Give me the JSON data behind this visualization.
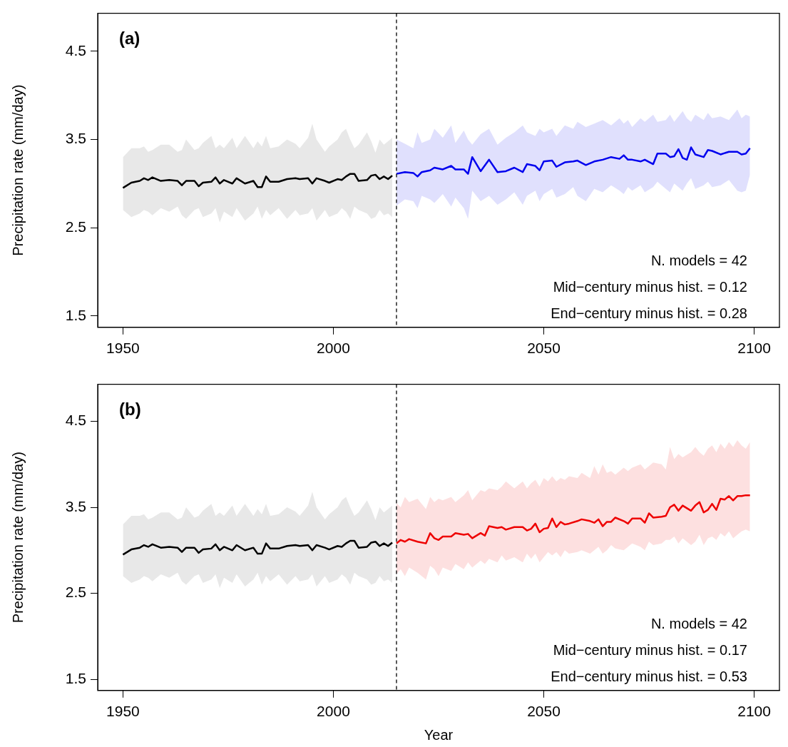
{
  "chart_data": [
    {
      "type": "line",
      "ylabel": "Precipitation rate (mm/day)",
      "xlim": [
        1944,
        2106
      ],
      "xticks": [
        1950,
        2000,
        2050,
        2100
      ],
      "ylim": [
        1.37,
        4.93
      ],
      "yticks": [
        1.5,
        2.5,
        3.5,
        4.5
      ],
      "grid": false,
      "legend": false,
      "marker": "none",
      "annotations": [
        "(a)",
        "N. models = 42",
        "Mid−century minus hist. = 0.12",
        "End−century minus hist. = 0.28"
      ],
      "ref_lines": [
        {
          "axis": "x",
          "value": 2015,
          "color": "#000000",
          "line_style": "dashed"
        }
      ],
      "series": [
        {
          "color": "#000000",
          "x": [
            1950,
            1952,
            1954,
            1955,
            1956,
            1957,
            1959,
            1961,
            1963,
            1964,
            1965,
            1967,
            1968,
            1969,
            1971,
            1972,
            1973,
            1974,
            1976,
            1977,
            1979,
            1981,
            1982,
            1983,
            1984,
            1985,
            1987,
            1989,
            1991,
            1992,
            1994,
            1995,
            1996,
            1998,
            1999,
            2001,
            2002,
            2003,
            2004,
            2005,
            2006,
            2008,
            2009,
            2010,
            2011,
            2012,
            2013,
            2014
          ],
          "values": [
            2.95,
            3.01,
            3.03,
            3.06,
            3.04,
            3.07,
            3.03,
            3.04,
            3.03,
            2.98,
            3.03,
            3.03,
            2.97,
            3.01,
            3.02,
            3.07,
            3.0,
            3.04,
            3.0,
            3.06,
            3.0,
            3.03,
            2.96,
            2.96,
            3.08,
            3.02,
            3.02,
            3.05,
            3.06,
            3.05,
            3.06,
            3.0,
            3.06,
            3.03,
            3.01,
            3.05,
            3.04,
            3.08,
            3.11,
            3.11,
            3.03,
            3.04,
            3.09,
            3.1,
            3.05,
            3.08,
            3.05,
            3.09
          ],
          "upper": [
            3.3,
            3.4,
            3.4,
            3.42,
            3.36,
            3.38,
            3.44,
            3.44,
            3.36,
            3.38,
            3.5,
            3.38,
            3.4,
            3.46,
            3.54,
            3.4,
            3.44,
            3.4,
            3.52,
            3.4,
            3.54,
            3.4,
            3.48,
            3.42,
            3.54,
            3.4,
            3.42,
            3.5,
            3.45,
            3.4,
            3.52,
            3.68,
            3.5,
            3.36,
            3.42,
            3.5,
            3.58,
            3.62,
            3.5,
            3.4,
            3.44,
            3.58,
            3.48,
            3.35,
            3.5,
            3.44,
            3.48,
            3.52
          ],
          "lower": [
            2.7,
            2.62,
            2.66,
            2.7,
            2.68,
            2.64,
            2.72,
            2.68,
            2.74,
            2.64,
            2.6,
            2.7,
            2.72,
            2.62,
            2.66,
            2.72,
            2.56,
            2.68,
            2.62,
            2.72,
            2.58,
            2.66,
            2.74,
            2.6,
            2.7,
            2.64,
            2.72,
            2.6,
            2.7,
            2.64,
            2.66,
            2.72,
            2.58,
            2.7,
            2.62,
            2.66,
            2.72,
            2.68,
            2.6,
            2.74,
            2.7,
            2.66,
            2.6,
            2.62,
            2.7,
            2.64,
            2.66,
            2.62
          ]
        },
        {
          "color": "#0000ee",
          "x": [
            2015,
            2017,
            2019,
            2020,
            2021,
            2023,
            2024,
            2026,
            2028,
            2029,
            2031,
            2032,
            2033,
            2035,
            2037,
            2039,
            2041,
            2043,
            2045,
            2046,
            2048,
            2049,
            2050,
            2052,
            2053,
            2055,
            2057,
            2058,
            2060,
            2062,
            2064,
            2066,
            2068,
            2069,
            2070,
            2071,
            2073,
            2074,
            2076,
            2077,
            2079,
            2080,
            2081,
            2082,
            2083,
            2084,
            2085,
            2086,
            2088,
            2089,
            2090,
            2092,
            2094,
            2096,
            2097,
            2098,
            2099
          ],
          "values": [
            3.11,
            3.13,
            3.12,
            3.08,
            3.13,
            3.15,
            3.18,
            3.16,
            3.2,
            3.16,
            3.16,
            3.11,
            3.3,
            3.14,
            3.27,
            3.13,
            3.14,
            3.18,
            3.13,
            3.22,
            3.2,
            3.15,
            3.25,
            3.26,
            3.19,
            3.24,
            3.25,
            3.26,
            3.21,
            3.25,
            3.27,
            3.3,
            3.28,
            3.32,
            3.27,
            3.27,
            3.25,
            3.27,
            3.22,
            3.34,
            3.34,
            3.3,
            3.31,
            3.39,
            3.29,
            3.27,
            3.41,
            3.33,
            3.3,
            3.38,
            3.37,
            3.33,
            3.36,
            3.36,
            3.33,
            3.34,
            3.4
          ],
          "upper": [
            3.5,
            3.45,
            3.4,
            3.58,
            3.46,
            3.5,
            3.62,
            3.52,
            3.66,
            3.46,
            3.6,
            3.5,
            3.44,
            3.56,
            3.62,
            3.44,
            3.52,
            3.58,
            3.66,
            3.58,
            3.54,
            3.62,
            3.58,
            3.62,
            3.54,
            3.66,
            3.62,
            3.7,
            3.64,
            3.68,
            3.72,
            3.66,
            3.74,
            3.68,
            3.72,
            3.64,
            3.74,
            3.7,
            3.78,
            3.7,
            3.72,
            3.78,
            3.7,
            3.76,
            3.82,
            3.74,
            3.7,
            3.78,
            3.72,
            3.8,
            3.74,
            3.76,
            3.72,
            3.84,
            3.74,
            3.78,
            3.76
          ],
          "lower": [
            2.75,
            2.82,
            2.8,
            2.72,
            2.86,
            2.82,
            2.78,
            2.88,
            2.74,
            2.84,
            2.72,
            2.6,
            2.92,
            2.8,
            2.86,
            2.76,
            2.82,
            2.9,
            2.76,
            2.86,
            2.92,
            2.8,
            2.88,
            2.94,
            2.84,
            2.88,
            2.96,
            2.86,
            2.8,
            2.94,
            2.9,
            2.98,
            2.92,
            2.88,
            2.96,
            2.92,
            2.98,
            2.9,
            2.96,
            3.02,
            2.94,
            2.9,
            3.0,
            2.96,
            2.92,
            3.0,
            3.06,
            2.94,
            2.98,
            3.02,
            2.96,
            2.98,
            3.04,
            2.92,
            2.9,
            2.92,
            3.1
          ]
        }
      ]
    },
    {
      "type": "line",
      "xlabel": "Year",
      "ylabel": "Precipitation rate (mm/day)",
      "xlim": [
        1944,
        2106
      ],
      "xticks": [
        1950,
        2000,
        2050,
        2100
      ],
      "ylim": [
        1.37,
        4.93
      ],
      "yticks": [
        1.5,
        2.5,
        3.5,
        4.5
      ],
      "grid": false,
      "legend": false,
      "marker": "none",
      "annotations": [
        "(b)",
        "N. models = 42",
        "Mid−century minus hist. = 0.17",
        "End−century minus hist. = 0.53"
      ],
      "ref_lines": [
        {
          "axis": "x",
          "value": 2015,
          "color": "#000000",
          "line_style": "dashed"
        }
      ],
      "series": [
        {
          "color": "#000000",
          "x": [
            1950,
            1952,
            1954,
            1955,
            1956,
            1957,
            1959,
            1961,
            1963,
            1964,
            1965,
            1967,
            1968,
            1969,
            1971,
            1972,
            1973,
            1974,
            1976,
            1977,
            1979,
            1981,
            1982,
            1983,
            1984,
            1985,
            1987,
            1989,
            1991,
            1992,
            1994,
            1995,
            1996,
            1998,
            1999,
            2001,
            2002,
            2003,
            2004,
            2005,
            2006,
            2008,
            2009,
            2010,
            2011,
            2012,
            2013,
            2014
          ],
          "values": [
            2.95,
            3.01,
            3.03,
            3.06,
            3.04,
            3.07,
            3.03,
            3.04,
            3.03,
            2.98,
            3.03,
            3.03,
            2.97,
            3.01,
            3.02,
            3.07,
            3.0,
            3.04,
            3.0,
            3.06,
            3.0,
            3.03,
            2.96,
            2.96,
            3.08,
            3.02,
            3.02,
            3.05,
            3.06,
            3.05,
            3.06,
            3.0,
            3.06,
            3.03,
            3.01,
            3.05,
            3.04,
            3.08,
            3.11,
            3.11,
            3.03,
            3.04,
            3.09,
            3.1,
            3.05,
            3.08,
            3.05,
            3.09
          ],
          "upper": [
            3.3,
            3.4,
            3.4,
            3.42,
            3.36,
            3.38,
            3.44,
            3.44,
            3.36,
            3.38,
            3.5,
            3.38,
            3.4,
            3.46,
            3.54,
            3.4,
            3.44,
            3.4,
            3.52,
            3.4,
            3.54,
            3.4,
            3.48,
            3.42,
            3.54,
            3.4,
            3.42,
            3.5,
            3.45,
            3.4,
            3.52,
            3.68,
            3.5,
            3.36,
            3.42,
            3.5,
            3.58,
            3.62,
            3.5,
            3.4,
            3.44,
            3.58,
            3.48,
            3.35,
            3.5,
            3.44,
            3.48,
            3.52
          ],
          "lower": [
            2.7,
            2.62,
            2.66,
            2.7,
            2.68,
            2.64,
            2.72,
            2.68,
            2.74,
            2.64,
            2.6,
            2.7,
            2.72,
            2.62,
            2.66,
            2.72,
            2.56,
            2.68,
            2.62,
            2.72,
            2.58,
            2.66,
            2.74,
            2.6,
            2.7,
            2.64,
            2.72,
            2.6,
            2.7,
            2.64,
            2.66,
            2.72,
            2.58,
            2.7,
            2.62,
            2.66,
            2.72,
            2.68,
            2.6,
            2.74,
            2.7,
            2.66,
            2.6,
            2.62,
            2.7,
            2.64,
            2.66,
            2.62
          ]
        },
        {
          "color": "#ee0000",
          "x": [
            2015,
            2016,
            2017,
            2018,
            2020,
            2022,
            2023,
            2024,
            2025,
            2026,
            2028,
            2029,
            2031,
            2032,
            2033,
            2035,
            2036,
            2037,
            2039,
            2040,
            2041,
            2043,
            2045,
            2046,
            2047,
            2048,
            2049,
            2050,
            2051,
            2052,
            2053,
            2054,
            2055,
            2056,
            2058,
            2059,
            2061,
            2062,
            2063,
            2064,
            2065,
            2066,
            2067,
            2069,
            2070,
            2071,
            2073,
            2074,
            2075,
            2076,
            2078,
            2079,
            2080,
            2081,
            2082,
            2083,
            2085,
            2086,
            2087,
            2088,
            2089,
            2090,
            2091,
            2092,
            2093,
            2094,
            2095,
            2096,
            2097,
            2098,
            2099
          ],
          "values": [
            3.08,
            3.12,
            3.1,
            3.13,
            3.1,
            3.08,
            3.2,
            3.14,
            3.12,
            3.16,
            3.16,
            3.2,
            3.18,
            3.19,
            3.14,
            3.2,
            3.17,
            3.28,
            3.26,
            3.27,
            3.24,
            3.27,
            3.27,
            3.23,
            3.25,
            3.31,
            3.21,
            3.25,
            3.26,
            3.37,
            3.27,
            3.33,
            3.3,
            3.31,
            3.34,
            3.36,
            3.34,
            3.32,
            3.36,
            3.28,
            3.33,
            3.33,
            3.38,
            3.34,
            3.31,
            3.37,
            3.37,
            3.32,
            3.43,
            3.38,
            3.39,
            3.4,
            3.5,
            3.53,
            3.46,
            3.52,
            3.46,
            3.52,
            3.56,
            3.44,
            3.47,
            3.54,
            3.47,
            3.6,
            3.59,
            3.63,
            3.58,
            3.63,
            3.63,
            3.64,
            3.64
          ],
          "upper": [
            3.55,
            3.5,
            3.62,
            3.56,
            3.6,
            3.48,
            3.62,
            3.56,
            3.6,
            3.58,
            3.62,
            3.56,
            3.64,
            3.7,
            3.58,
            3.7,
            3.68,
            3.72,
            3.7,
            3.74,
            3.8,
            3.72,
            3.8,
            3.72,
            3.78,
            3.82,
            3.74,
            3.84,
            3.8,
            3.86,
            3.8,
            3.84,
            3.82,
            3.86,
            3.84,
            3.9,
            3.84,
            3.98,
            3.88,
            4.0,
            3.9,
            3.92,
            3.88,
            3.96,
            3.92,
            3.96,
            4.0,
            3.94,
            3.98,
            4.02,
            4.0,
            3.94,
            4.2,
            4.06,
            4.12,
            4.08,
            4.14,
            4.2,
            4.14,
            4.1,
            4.18,
            4.22,
            4.14,
            4.24,
            4.18,
            4.26,
            4.2,
            4.28,
            4.22,
            4.18,
            4.26
          ],
          "lower": [
            2.72,
            2.78,
            2.7,
            2.8,
            2.74,
            2.66,
            2.82,
            2.78,
            2.7,
            2.8,
            2.76,
            2.84,
            2.78,
            2.86,
            2.8,
            2.88,
            2.84,
            2.9,
            2.86,
            2.94,
            2.88,
            2.92,
            2.86,
            2.96,
            2.9,
            2.96,
            2.86,
            2.92,
            2.98,
            2.94,
            2.98,
            2.92,
            3.0,
            2.96,
            2.98,
            3.0,
            2.96,
            3.0,
            3.04,
            2.96,
            3.0,
            3.06,
            3.02,
            3.0,
            3.04,
            3.08,
            3.04,
            3.0,
            3.1,
            3.06,
            3.08,
            3.12,
            3.12,
            3.16,
            3.08,
            3.14,
            3.06,
            3.1,
            3.18,
            3.06,
            3.14,
            3.16,
            3.12,
            3.2,
            3.16,
            3.22,
            3.14,
            3.18,
            3.22,
            3.24,
            3.22
          ]
        }
      ]
    }
  ]
}
